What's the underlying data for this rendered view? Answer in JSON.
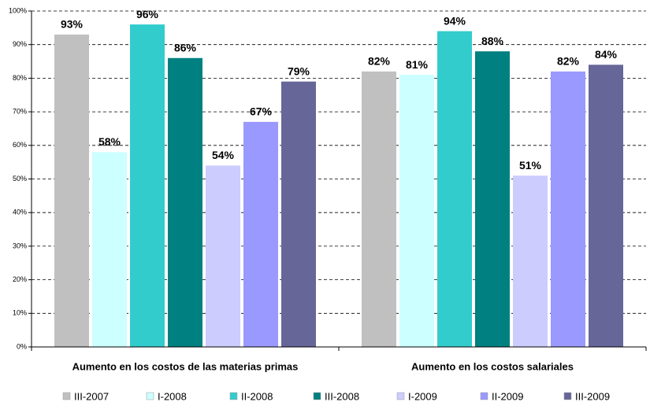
{
  "chart_data": {
    "type": "bar",
    "categories": [
      "Aumento en los costos de las materias primas",
      "Aumento en los costos salariales"
    ],
    "series": [
      {
        "name": "III-2007",
        "color": "#c0c0c0",
        "values": [
          93,
          82
        ],
        "value_labels": [
          "93%",
          "82%"
        ]
      },
      {
        "name": "I-2008",
        "color": "#ccffff",
        "values": [
          58,
          81
        ],
        "value_labels": [
          "58%",
          "81%"
        ]
      },
      {
        "name": "II-2008",
        "color": "#33cccc",
        "values": [
          96,
          94
        ],
        "value_labels": [
          "96%",
          "94%"
        ]
      },
      {
        "name": "III-2008",
        "color": "#008080",
        "values": [
          86,
          88
        ],
        "value_labels": [
          "86%",
          "88%"
        ]
      },
      {
        "name": "I-2009",
        "color": "#ccccff",
        "values": [
          54,
          51
        ],
        "value_labels": [
          "54%",
          "51%"
        ]
      },
      {
        "name": "II-2009",
        "color": "#9999ff",
        "values": [
          67,
          82
        ],
        "value_labels": [
          "67%",
          "82%"
        ]
      },
      {
        "name": "III-2009",
        "color": "#666699",
        "values": [
          79,
          84
        ],
        "value_labels": [
          "79%",
          "84%"
        ]
      }
    ],
    "ylim": [
      0,
      100
    ],
    "yticks": [
      {
        "value": 0,
        "label": "0%"
      },
      {
        "value": 10,
        "label": "10%"
      },
      {
        "value": 20,
        "label": "20%"
      },
      {
        "value": 30,
        "label": "30%"
      },
      {
        "value": 40,
        "label": "40%"
      },
      {
        "value": 50,
        "label": "50%"
      },
      {
        "value": 60,
        "label": "60%"
      },
      {
        "value": 70,
        "label": "70%"
      },
      {
        "value": 80,
        "label": "80%"
      },
      {
        "value": 90,
        "label": "90%"
      },
      {
        "value": 100,
        "label": "100%"
      }
    ],
    "grid": true,
    "legend": "bottom"
  }
}
